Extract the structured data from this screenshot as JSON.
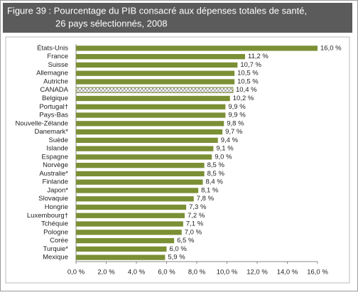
{
  "chart_data": {
    "type": "bar",
    "orientation": "horizontal",
    "title": "Figure 39 : Pourcentage du PIB consacré aux dépenses totales de santé,",
    "subtitle": "26 pays sélectionnés, 2008",
    "categories": [
      "États-Unis",
      "France",
      "Suisse",
      "Allemagne",
      "Autriche",
      "CANADA",
      "Belgique",
      "Portugal†",
      "Pays-Bas",
      "Nouvelle-Zélande",
      "Danemark*",
      "Suède",
      "Islande",
      "Espagne",
      "Norvège",
      "Australie*",
      "Finlande",
      "Japon*",
      "Slovaquie",
      "Hongrie",
      "Luxembourg†",
      "Tchéquie",
      "Pologne",
      "Corée",
      "Turquie*",
      "Mexique"
    ],
    "values": [
      16.0,
      11.2,
      10.7,
      10.5,
      10.5,
      10.4,
      10.2,
      9.9,
      9.9,
      9.8,
      9.7,
      9.4,
      9.1,
      9.0,
      8.5,
      8.5,
      8.4,
      8.1,
      7.8,
      7.3,
      7.2,
      7.1,
      7.0,
      6.5,
      6.0,
      5.9
    ],
    "value_labels": [
      "16,0 %",
      "11,2 %",
      "10,7 %",
      "10,5 %",
      "10,5 %",
      "10,4 %",
      "10,2 %",
      "9,9 %",
      "9,9 %",
      "9,8 %",
      "9,7 %",
      "9,4 %",
      "9,1 %",
      "9,0 %",
      "8,5 %",
      "8,5 %",
      "8,4 %",
      "8,1 %",
      "7,8 %",
      "7,3 %",
      "7,2 %",
      "7,1 %",
      "7,0 %",
      "6,5 %",
      "6,0 %",
      "5,9 %"
    ],
    "color": "#7b8f35",
    "highlight": {
      "index": 5,
      "style": "hatched"
    },
    "xlim": [
      0,
      16
    ],
    "xticks": [
      {
        "value": 0,
        "label": "0,0 %"
      },
      {
        "value": 2,
        "label": "2,0 %"
      },
      {
        "value": 4,
        "label": "4,0 %"
      },
      {
        "value": 6,
        "label": "6,0 %"
      },
      {
        "value": 8,
        "label": "8,0 %"
      },
      {
        "value": 10,
        "label": "10,0 %"
      },
      {
        "value": 12,
        "label": "12,0 %"
      },
      {
        "value": 14,
        "label": "14,0 %"
      },
      {
        "value": 16,
        "label": "16,0 %"
      }
    ],
    "grid": false
  }
}
